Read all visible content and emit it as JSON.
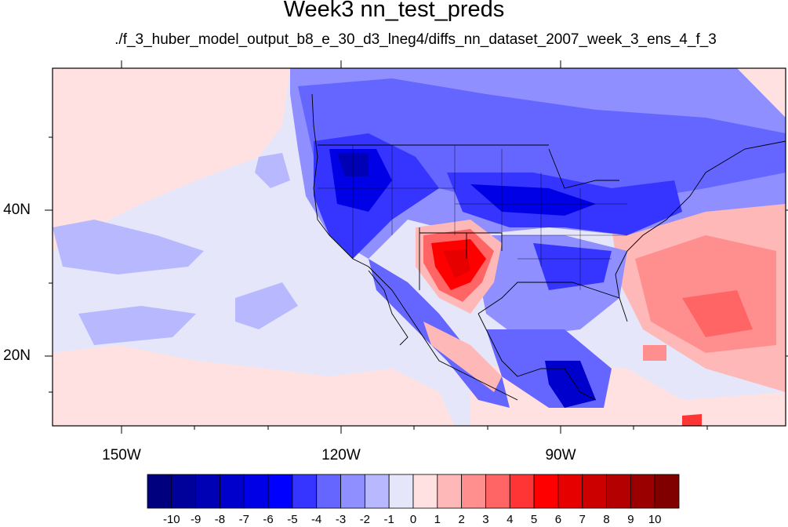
{
  "title": "Week3 nn_test_preds",
  "subtitle": "./f_3_huber_model_output_b8_e_30_d3_lneg4/diffs_nn_dataset_2007_week_3_ens_4_f_3",
  "map": {
    "lon_labels": [
      "150W",
      "120W",
      "90W"
    ],
    "lat_labels": [
      "40N",
      "20N"
    ],
    "background_color": "#e6e6fa",
    "colorbar": {
      "labels": [
        "-10",
        "-9",
        "-8",
        "-7",
        "-6",
        "-5",
        "-4",
        "-3",
        "-2",
        "-1",
        "0",
        "1",
        "2",
        "3",
        "4",
        "5",
        "6",
        "7",
        "8",
        "9",
        "10"
      ],
      "colors": [
        "#00007f",
        "#00009a",
        "#0000b4",
        "#0000cd",
        "#0000e6",
        "#0000ff",
        "#3535ff",
        "#6565ff",
        "#8f8fff",
        "#b8b8ff",
        "#e6e6fa",
        "#ffe1e1",
        "#ffb8b8",
        "#ff8f8f",
        "#ff6565",
        "#ff3535",
        "#ff0000",
        "#e60000",
        "#cd0000",
        "#b40000",
        "#9a0000",
        "#800000"
      ]
    }
  }
}
